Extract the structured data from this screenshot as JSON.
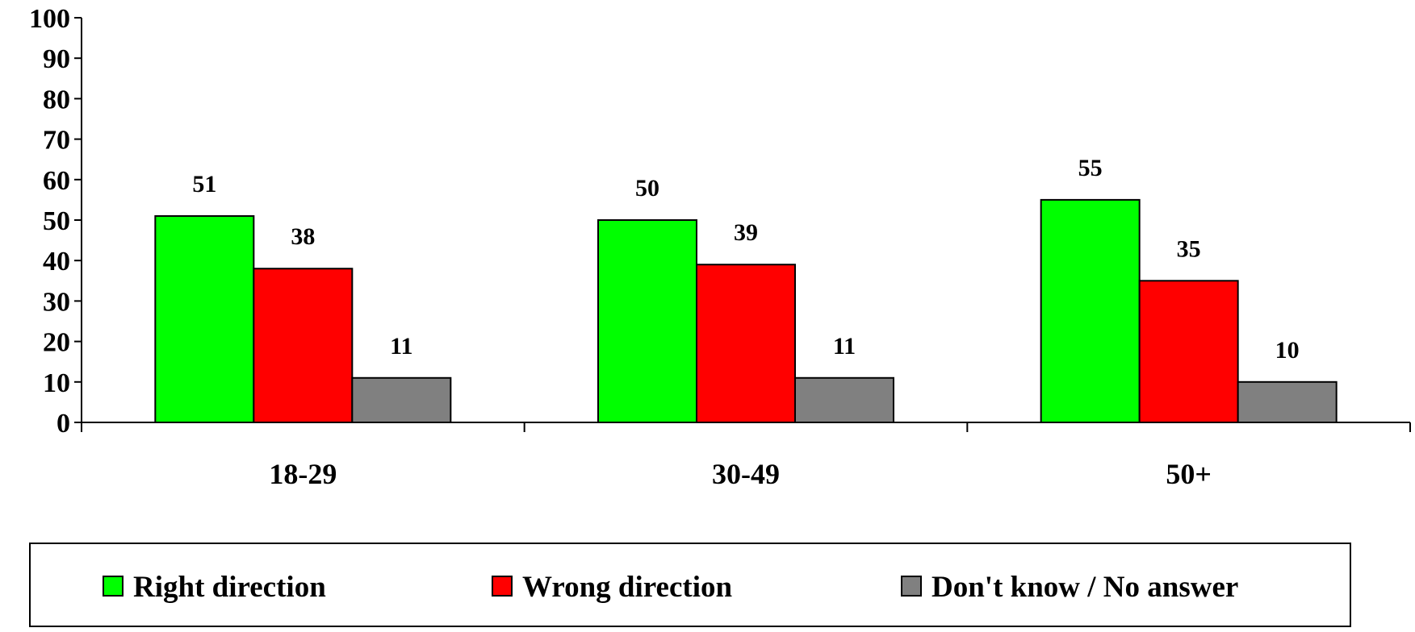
{
  "colors": {
    "right": "#00ff00",
    "wrong": "#ff0000",
    "dontknow": "#808080",
    "axis": "#000000",
    "background": "#ffffff"
  },
  "chart_data": {
    "type": "bar",
    "title": "",
    "xlabel": "",
    "ylabel": "",
    "categories": [
      "18-29",
      "30-49",
      "50+"
    ],
    "series": [
      {
        "name": "Right direction",
        "color": "#00ff00",
        "values": [
          51,
          50,
          55
        ]
      },
      {
        "name": "Wrong direction",
        "color": "#ff0000",
        "values": [
          38,
          39,
          35
        ]
      },
      {
        "name": "Don't know / No answer",
        "color": "#808080",
        "values": [
          11,
          11,
          10
        ]
      }
    ],
    "ylim": [
      0,
      100
    ],
    "yticks": [
      0,
      10,
      20,
      30,
      40,
      50,
      60,
      70,
      80,
      90,
      100
    ],
    "grid": false,
    "legend_position": "bottom",
    "data_labels": true
  }
}
